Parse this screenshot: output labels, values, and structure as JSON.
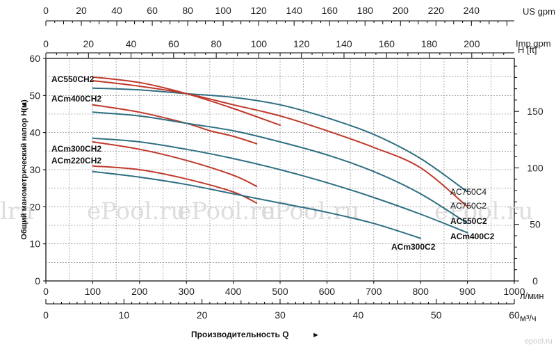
{
  "chart_data": {
    "type": "line",
    "xlabel": "Производительность Q",
    "ylabel": "Общий манометрический напор  H(м)",
    "ylabel_right": "H [ft]",
    "x_units": {
      "main": "л/мин",
      "m3h": "м³/ч",
      "imp": "Imp gpm",
      "us": "US gpm"
    },
    "xlim": [
      0,
      1000
    ],
    "ylim": [
      0,
      60
    ],
    "grid": true,
    "x_ticks_lmin": [
      0,
      100,
      200,
      300,
      400,
      500,
      600,
      700,
      800,
      900,
      1000
    ],
    "x_ticks_m3h": [
      0,
      10,
      20,
      30,
      40,
      50,
      60
    ],
    "x_ticks_imp": [
      0,
      20,
      40,
      60,
      80,
      100,
      120,
      140,
      160,
      180,
      200
    ],
    "x_ticks_us": [
      0,
      20,
      40,
      60,
      80,
      100,
      120,
      140,
      160,
      180,
      200,
      220,
      240
    ],
    "y_ticks": [
      0,
      10,
      20,
      30,
      40,
      50,
      60
    ],
    "y_ticks_ft": [
      0,
      50,
      100,
      150
    ],
    "series": [
      {
        "name": "AC550CH2",
        "color": "#c0392b",
        "x": [
          100,
          200,
          300,
          400,
          500
        ],
        "y": [
          55,
          53.5,
          50.5,
          46.5,
          42
        ]
      },
      {
        "name": "ACm400CH2",
        "color": "#c0392b",
        "x": [
          100,
          200,
          300,
          350,
          400,
          450
        ],
        "y": [
          47.5,
          45.5,
          42.5,
          40.5,
          39,
          37
        ]
      },
      {
        "name": "ACm300CH2",
        "color": "#c0392b",
        "x": [
          100,
          200,
          300,
          400,
          450
        ],
        "y": [
          37.5,
          35.5,
          32.5,
          28.5,
          25.5
        ]
      },
      {
        "name": "ACm220CH2",
        "color": "#c0392b",
        "x": [
          100,
          200,
          300,
          400,
          450
        ],
        "y": [
          31,
          30,
          27.5,
          24,
          21
        ]
      },
      {
        "name": "AC750C4",
        "color": "#2e6f82",
        "x": [
          100,
          200,
          300,
          400,
          500,
          600,
          700,
          800,
          900
        ],
        "y": [
          52,
          51.5,
          50.5,
          49.5,
          47.5,
          44,
          39.5,
          33,
          24
        ]
      },
      {
        "name": "AC750C2",
        "color": "#c0392b",
        "x": [
          100,
          200,
          300,
          400,
          500,
          600,
          700,
          800,
          900
        ],
        "y": [
          54,
          52.5,
          50.5,
          47.5,
          44.5,
          40.5,
          36,
          30.5,
          20
        ]
      },
      {
        "name": "AC550C2",
        "color": "#2e6f82",
        "x": [
          100,
          200,
          300,
          400,
          500,
          600,
          700,
          800,
          900
        ],
        "y": [
          45.5,
          44.5,
          42.5,
          40.5,
          37.5,
          34,
          29.5,
          23.5,
          15.5
        ]
      },
      {
        "name": "ACm400C2",
        "color": "#2e6f82",
        "x": [
          100,
          200,
          300,
          400,
          500,
          600,
          700,
          800,
          900
        ],
        "y": [
          38.5,
          37.5,
          35.5,
          33,
          30,
          26.5,
          22.5,
          18,
          13
        ]
      },
      {
        "name": "ACm300C2",
        "color": "#2e6f82",
        "x": [
          100,
          200,
          300,
          400,
          500,
          600,
          700,
          800
        ],
        "y": [
          29.5,
          28,
          26,
          23.5,
          21,
          18.5,
          15.5,
          11.5
        ]
      }
    ],
    "watermarks": [
      "ePool.ru",
      "ePool.ru",
      "ePool.ru",
      "ePool.ru",
      "lru"
    ],
    "footer_mark": "epool.ru"
  }
}
